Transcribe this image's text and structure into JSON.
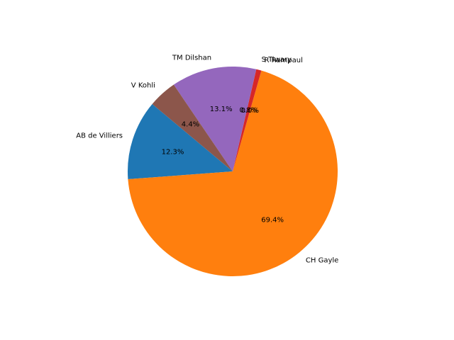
{
  "chart_data": {
    "type": "pie",
    "title": "",
    "labels": [
      "AB de Villiers",
      "CH Gayle",
      "R Rampaul",
      "S Tiwary",
      "TM Dilshan",
      "V Kohli"
    ],
    "values": [
      12.3,
      69.4,
      0.0,
      0.8,
      13.1,
      4.4
    ],
    "percent_labels": [
      "12.3%",
      "69.4%",
      "0.0%",
      "0.8%",
      "13.1%",
      "4.4%"
    ],
    "colors": [
      "#1f77b4",
      "#ff7f0e",
      "#2ca02c",
      "#d62728",
      "#9467bd",
      "#8c564b"
    ],
    "start_angle_deg": 140,
    "direction": "counterclockwise",
    "legend": "none"
  }
}
